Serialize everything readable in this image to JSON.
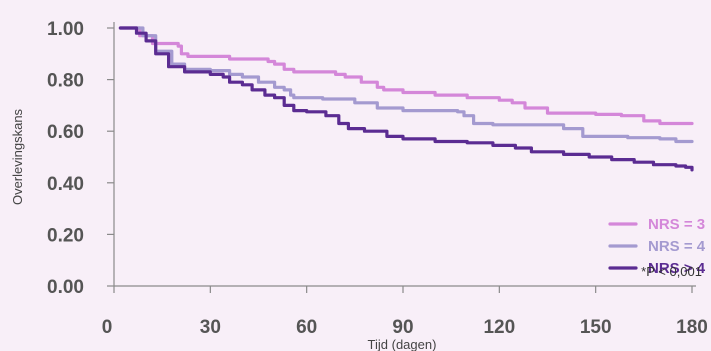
{
  "chart_data": {
    "type": "line",
    "step": true,
    "ylabel": "Overlevingskans",
    "xlabel": "Tijd (dagen)",
    "xlim": [
      0,
      180
    ],
    "ylim": [
      0,
      1
    ],
    "xticks": [
      0,
      30,
      60,
      90,
      120,
      150,
      180
    ],
    "yticks": [
      0,
      0.2,
      0.4,
      0.6,
      0.8,
      1.0
    ],
    "ytick_labels": [
      "0.00",
      "0.20",
      "0.40",
      "0.60",
      "0.80",
      "1.00"
    ],
    "xtick_labels": [
      "0",
      "30",
      "60",
      "90",
      "120",
      "150",
      "180"
    ],
    "grid": false,
    "legend_position": "bottom-right",
    "annotation": "*P < 0,001",
    "series": [
      {
        "name": "NRS = 3",
        "color": "#d487d9",
        "points": [
          [
            2,
            1.0
          ],
          [
            6,
            1.0
          ],
          [
            8,
            0.97
          ],
          [
            12,
            0.94
          ],
          [
            20,
            0.93
          ],
          [
            21,
            0.9
          ],
          [
            23,
            0.89
          ],
          [
            30,
            0.89
          ],
          [
            35,
            0.89
          ],
          [
            36,
            0.88
          ],
          [
            40,
            0.88
          ],
          [
            48,
            0.87
          ],
          [
            50,
            0.86
          ],
          [
            53,
            0.84
          ],
          [
            56,
            0.83
          ],
          [
            65,
            0.83
          ],
          [
            67,
            0.83
          ],
          [
            69,
            0.82
          ],
          [
            72,
            0.81
          ],
          [
            76,
            0.81
          ],
          [
            77,
            0.79
          ],
          [
            80,
            0.79
          ],
          [
            82,
            0.77
          ],
          [
            84,
            0.76
          ],
          [
            90,
            0.75
          ],
          [
            100,
            0.74
          ],
          [
            110,
            0.73
          ],
          [
            120,
            0.72
          ],
          [
            124,
            0.71
          ],
          [
            128,
            0.69
          ],
          [
            135,
            0.67
          ],
          [
            150,
            0.665
          ],
          [
            158,
            0.66
          ],
          [
            165,
            0.64
          ],
          [
            170,
            0.63
          ],
          [
            180,
            0.63
          ]
        ]
      },
      {
        "name": "NRS = 4",
        "color": "#a49ad0",
        "points": [
          [
            2,
            1.0
          ],
          [
            5,
            1.0
          ],
          [
            9,
            0.97
          ],
          [
            13,
            0.91
          ],
          [
            18,
            0.86
          ],
          [
            22,
            0.84
          ],
          [
            30,
            0.835
          ],
          [
            36,
            0.82
          ],
          [
            40,
            0.81
          ],
          [
            45,
            0.79
          ],
          [
            50,
            0.77
          ],
          [
            53,
            0.76
          ],
          [
            55,
            0.74
          ],
          [
            56,
            0.73
          ],
          [
            65,
            0.725
          ],
          [
            75,
            0.71
          ],
          [
            82,
            0.69
          ],
          [
            90,
            0.68
          ],
          [
            100,
            0.68
          ],
          [
            107,
            0.675
          ],
          [
            109,
            0.66
          ],
          [
            112,
            0.63
          ],
          [
            118,
            0.625
          ],
          [
            135,
            0.625
          ],
          [
            140,
            0.61
          ],
          [
            146,
            0.58
          ],
          [
            160,
            0.575
          ],
          [
            170,
            0.57
          ],
          [
            175,
            0.56
          ],
          [
            180,
            0.56
          ]
        ]
      },
      {
        "name": "NRS > 4",
        "color": "#5b2c92",
        "points": [
          [
            2,
            1.0
          ],
          [
            4,
            1.0
          ],
          [
            7,
            0.98
          ],
          [
            10,
            0.95
          ],
          [
            13,
            0.9
          ],
          [
            17,
            0.85
          ],
          [
            22,
            0.83
          ],
          [
            30,
            0.82
          ],
          [
            34,
            0.81
          ],
          [
            36,
            0.79
          ],
          [
            40,
            0.78
          ],
          [
            43,
            0.76
          ],
          [
            47,
            0.74
          ],
          [
            50,
            0.73
          ],
          [
            53,
            0.7
          ],
          [
            56,
            0.68
          ],
          [
            60,
            0.675
          ],
          [
            66,
            0.66
          ],
          [
            70,
            0.63
          ],
          [
            73,
            0.61
          ],
          [
            78,
            0.6
          ],
          [
            85,
            0.58
          ],
          [
            90,
            0.57
          ],
          [
            95,
            0.57
          ],
          [
            100,
            0.56
          ],
          [
            110,
            0.555
          ],
          [
            118,
            0.545
          ],
          [
            125,
            0.535
          ],
          [
            130,
            0.52
          ],
          [
            140,
            0.51
          ],
          [
            148,
            0.5
          ],
          [
            155,
            0.49
          ],
          [
            162,
            0.48
          ],
          [
            168,
            0.47
          ],
          [
            175,
            0.465
          ],
          [
            178,
            0.46
          ],
          [
            180,
            0.45
          ]
        ]
      }
    ]
  }
}
